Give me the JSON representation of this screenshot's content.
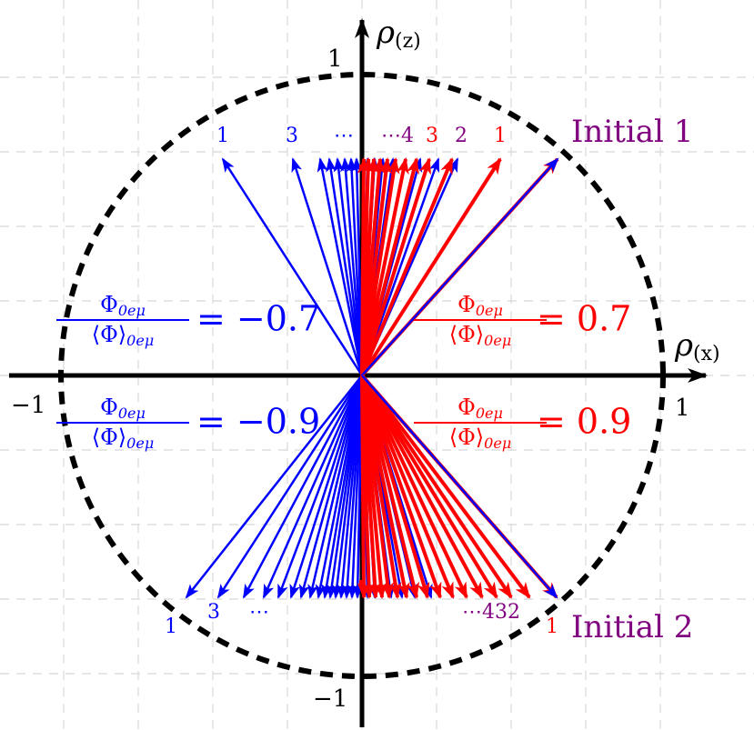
{
  "axes": {
    "x_symbol": "ρ",
    "x_sub": "(x)",
    "z_symbol": "ρ",
    "z_sub": "(z)",
    "x_pos": "1",
    "x_neg": "−1",
    "z_pos": "1",
    "z_neg": "−1"
  },
  "fraction": {
    "numerator": "Φ",
    "numerator_sub": "0eμ",
    "denominator": "⟨Φ⟩",
    "denominator_sub": "0eμ"
  },
  "ratios": {
    "upper_left": "= −0.7",
    "upper_right": "= 0.7",
    "lower_left": "= −0.9",
    "lower_right": "= 0.9"
  },
  "initials": {
    "top": "Initial 1",
    "bottom": "Initial 2"
  },
  "top_labels": {
    "blue_1": "1",
    "blue_3": "3",
    "blue_dots": "⋯",
    "purple_dots4": "⋯4",
    "red_3": "3",
    "purple_2": "2",
    "red_1": "1"
  },
  "bottom_labels": {
    "blue_1": "1",
    "blue_3": "3",
    "blue_dots": "⋯",
    "purple_dots432": "⋯432",
    "red_1": "1"
  }
}
